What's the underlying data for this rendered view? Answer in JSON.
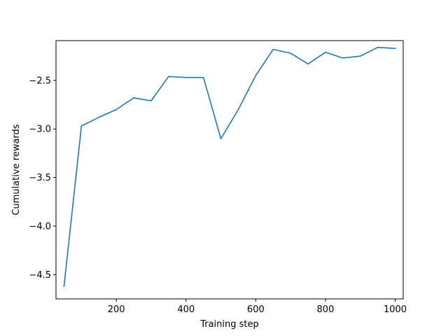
{
  "chart_data": {
    "type": "line",
    "title": "",
    "xlabel": "Training step",
    "ylabel": "Cumulative rewards",
    "xlim": [
      27,
      1023
    ],
    "ylim": [
      -4.75,
      -2.09
    ],
    "xticks": [
      200,
      400,
      600,
      800,
      1000
    ],
    "xtick_labels": [
      "200",
      "400",
      "600",
      "800",
      "1000"
    ],
    "yticks": [
      -2.5,
      -3.0,
      -3.5,
      -4.0,
      -4.5
    ],
    "ytick_labels": [
      "−2.5",
      "−3.0",
      "−3.5",
      "−4.0",
      "−4.5"
    ],
    "grid": false,
    "series": [
      {
        "color": "#1f77b4",
        "x": [
          50,
          100,
          150,
          200,
          250,
          300,
          350,
          400,
          450,
          500,
          550,
          600,
          650,
          700,
          750,
          800,
          850,
          900,
          950,
          1000
        ],
        "y": [
          -4.62,
          -2.97,
          -2.88,
          -2.8,
          -2.68,
          -2.71,
          -2.46,
          -2.47,
          -2.47,
          -3.1,
          -2.8,
          -2.45,
          -2.18,
          -2.22,
          -2.33,
          -2.21,
          -2.27,
          -2.25,
          -2.16,
          -2.17
        ]
      }
    ]
  }
}
